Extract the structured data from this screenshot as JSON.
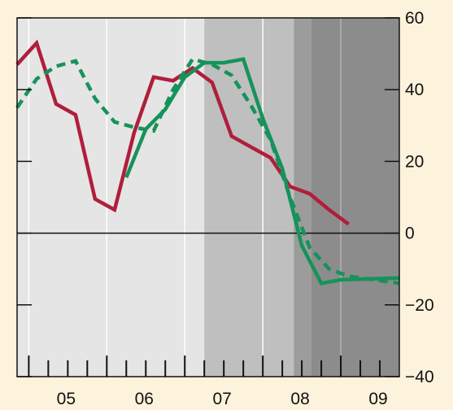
{
  "chart_data": {
    "type": "line",
    "title": "",
    "xlabel": "",
    "ylabel": "",
    "x_tick_labels": [
      "05",
      "06",
      "07",
      "08",
      "09"
    ],
    "y_ticks": [
      -40,
      -20,
      0,
      20,
      40,
      60
    ],
    "y_tick_labels": [
      "−40",
      "−20",
      "0",
      "20",
      "40",
      "60"
    ],
    "ylim": [
      -40,
      60
    ],
    "xlim": [
      2004.85,
      2009.75
    ],
    "grid": true,
    "legend": "none",
    "background_bands": [
      {
        "from": 2004.85,
        "to": 2007.25,
        "color": "#e5e5e5"
      },
      {
        "from": 2007.25,
        "to": 2008.4,
        "color": "#bfbfbf"
      },
      {
        "from": 2008.4,
        "to": 2008.62,
        "color": "#9c9c9c"
      },
      {
        "from": 2008.62,
        "to": 2009.75,
        "color": "#8c8c8c"
      }
    ],
    "series": [
      {
        "color": "#b01e3c",
        "style": "solid",
        "points": [
          [
            2004.85,
            47
          ],
          [
            2005.1,
            53
          ],
          [
            2005.35,
            36
          ],
          [
            2005.6,
            33
          ],
          [
            2005.85,
            9.5
          ],
          [
            2006.1,
            6.5
          ],
          [
            2006.35,
            28
          ],
          [
            2006.6,
            43.5
          ],
          [
            2006.85,
            42.5
          ],
          [
            2007.1,
            46
          ],
          [
            2007.35,
            42
          ],
          [
            2007.6,
            27
          ],
          [
            2007.85,
            24
          ],
          [
            2008.1,
            21
          ],
          [
            2008.35,
            13
          ],
          [
            2008.6,
            11
          ],
          [
            2008.85,
            6.5
          ],
          [
            2009.1,
            2.5
          ]
        ]
      },
      {
        "color": "#16935a",
        "style": "solid",
        "points": [
          [
            2006.25,
            15.5
          ],
          [
            2006.5,
            29
          ],
          [
            2006.75,
            34.5
          ],
          [
            2007.0,
            43.5
          ],
          [
            2007.25,
            47.5
          ],
          [
            2007.5,
            47.5
          ],
          [
            2007.75,
            48.5
          ],
          [
            2008.0,
            32
          ],
          [
            2008.25,
            18
          ],
          [
            2008.5,
            -3.5
          ],
          [
            2008.75,
            -14
          ],
          [
            2009.0,
            -13
          ],
          [
            2009.75,
            -12.5
          ]
        ]
      },
      {
        "color": "#16935a",
        "style": "dashed",
        "points": [
          [
            2004.85,
            35
          ],
          [
            2005.1,
            43
          ],
          [
            2005.35,
            46.5
          ],
          [
            2005.6,
            48
          ],
          [
            2005.85,
            37.5
          ],
          [
            2006.1,
            31
          ],
          [
            2006.35,
            29.5
          ],
          [
            2006.6,
            28.5
          ],
          [
            2006.85,
            40
          ],
          [
            2007.1,
            48.5
          ],
          [
            2007.35,
            47
          ],
          [
            2007.6,
            44
          ],
          [
            2007.85,
            35.5
          ],
          [
            2008.1,
            26
          ],
          [
            2008.35,
            10
          ],
          [
            2008.6,
            -4
          ],
          [
            2008.85,
            -10
          ],
          [
            2009.1,
            -12
          ],
          [
            2009.75,
            -14
          ]
        ]
      }
    ]
  }
}
